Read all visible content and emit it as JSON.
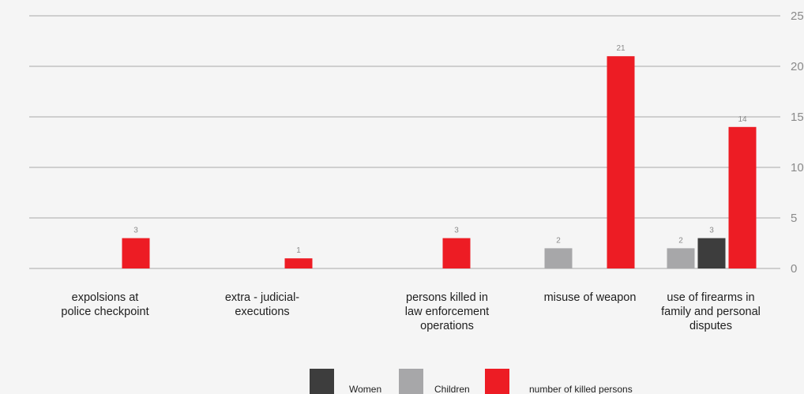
{
  "chart_data": {
    "type": "bar",
    "title": "",
    "xlabel": "",
    "ylabel": "",
    "ylim": [
      0,
      25
    ],
    "yticks": [
      0,
      5,
      10,
      15,
      20,
      25
    ],
    "grid": true,
    "legend_position": "bottom",
    "categories": [
      [
        "expolsions at",
        "police checkpoint"
      ],
      [
        "extra - judicial-",
        "executions"
      ],
      [
        "persons killed in",
        "law enforcement",
        "operations"
      ],
      [
        "misuse of weapon"
      ],
      [
        "use of firearms in",
        "family and personal",
        "disputes"
      ]
    ],
    "series": [
      {
        "name": "Women",
        "color": "#3d3d3d",
        "values": [
          null,
          null,
          null,
          null,
          3
        ]
      },
      {
        "name": "Children",
        "color": "#a7a7a9",
        "values": [
          null,
          null,
          null,
          2,
          2
        ]
      },
      {
        "name": "number of killed persons",
        "color": "#ed1c24",
        "values": [
          3,
          1,
          3,
          21,
          14
        ]
      }
    ]
  }
}
